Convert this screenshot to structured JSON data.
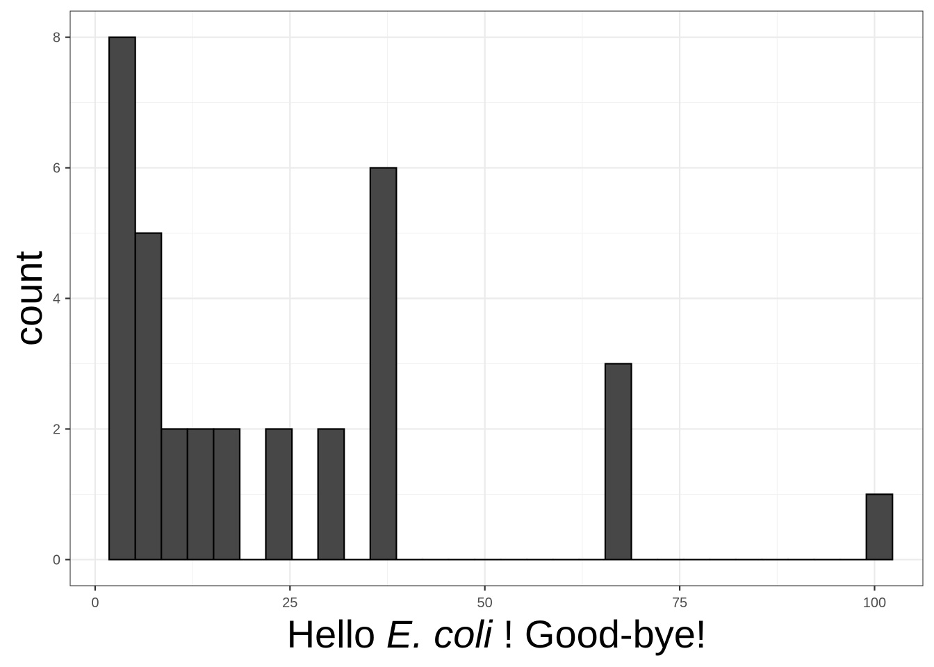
{
  "chart_data": {
    "type": "bar",
    "subtype": "histogram",
    "bins": [
      {
        "x_start": 1.8,
        "x_end": 5.15,
        "count": 8
      },
      {
        "x_start": 5.15,
        "x_end": 8.5,
        "count": 5
      },
      {
        "x_start": 8.5,
        "x_end": 11.85,
        "count": 2
      },
      {
        "x_start": 11.85,
        "x_end": 15.2,
        "count": 2
      },
      {
        "x_start": 15.2,
        "x_end": 18.55,
        "count": 2
      },
      {
        "x_start": 18.55,
        "x_end": 21.9,
        "count": 0
      },
      {
        "x_start": 21.9,
        "x_end": 25.25,
        "count": 2
      },
      {
        "x_start": 25.25,
        "x_end": 28.6,
        "count": 0
      },
      {
        "x_start": 28.6,
        "x_end": 31.95,
        "count": 2
      },
      {
        "x_start": 31.95,
        "x_end": 35.3,
        "count": 0
      },
      {
        "x_start": 35.3,
        "x_end": 38.65,
        "count": 6
      },
      {
        "x_start": 38.65,
        "x_end": 42.0,
        "count": 0
      },
      {
        "x_start": 42.0,
        "x_end": 45.35,
        "count": 0
      },
      {
        "x_start": 45.35,
        "x_end": 48.7,
        "count": 0
      },
      {
        "x_start": 48.7,
        "x_end": 52.05,
        "count": 0
      },
      {
        "x_start": 52.05,
        "x_end": 55.4,
        "count": 0
      },
      {
        "x_start": 55.4,
        "x_end": 58.75,
        "count": 0
      },
      {
        "x_start": 58.75,
        "x_end": 62.1,
        "count": 0
      },
      {
        "x_start": 62.1,
        "x_end": 65.45,
        "count": 0
      },
      {
        "x_start": 65.45,
        "x_end": 68.8,
        "count": 3
      },
      {
        "x_start": 68.8,
        "x_end": 72.15,
        "count": 0
      },
      {
        "x_start": 72.15,
        "x_end": 75.5,
        "count": 0
      },
      {
        "x_start": 75.5,
        "x_end": 78.85,
        "count": 0
      },
      {
        "x_start": 78.85,
        "x_end": 82.2,
        "count": 0
      },
      {
        "x_start": 82.2,
        "x_end": 85.55,
        "count": 0
      },
      {
        "x_start": 85.55,
        "x_end": 88.9,
        "count": 0
      },
      {
        "x_start": 88.9,
        "x_end": 92.25,
        "count": 0
      },
      {
        "x_start": 92.25,
        "x_end": 95.6,
        "count": 0
      },
      {
        "x_start": 95.6,
        "x_end": 98.95,
        "count": 0
      },
      {
        "x_start": 98.95,
        "x_end": 102.3,
        "count": 1
      }
    ],
    "x_ticks": [
      0,
      25,
      50,
      75,
      100
    ],
    "y_ticks": [
      0,
      2,
      4,
      6,
      8
    ],
    "xlim": [
      -3.2,
      106.2
    ],
    "ylim": [
      -0.4,
      8.4
    ],
    "xlabel": {
      "parts": [
        {
          "text": "Hello ",
          "italic": false
        },
        {
          "text": "E. coli",
          "italic": true
        },
        {
          "text": " ! Good-bye!",
          "italic": false
        }
      ]
    },
    "ylabel": "count",
    "grid": true,
    "legend": "none",
    "colors": {
      "bar_fill": "#474747",
      "bar_stroke": "#000000",
      "grid_major": "#ebebeb",
      "grid_minor": "#f2f2f2",
      "panel_border": "#333333",
      "tick_text": "#4d4d4d",
      "title_text": "#000000"
    }
  }
}
